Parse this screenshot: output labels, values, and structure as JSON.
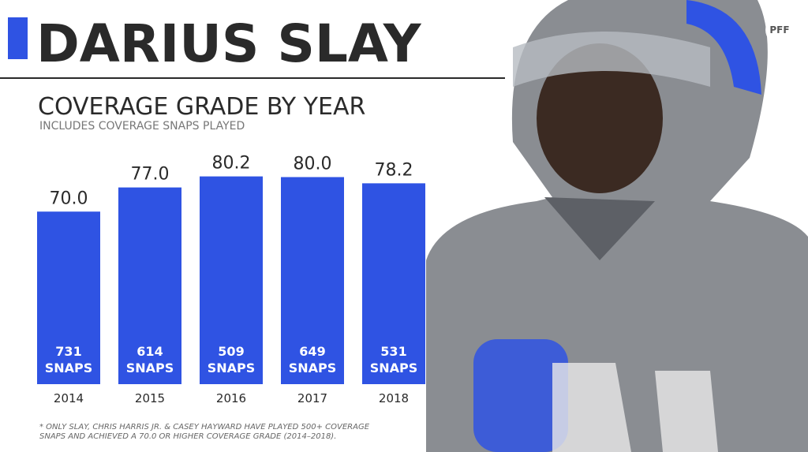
{
  "chart_data": {
    "type": "bar",
    "title": "DARIUS SLAY",
    "subtitle": "COVERAGE GRADE BY YEAR",
    "note": "INCLUDES COVERAGE SNAPS PLAYED",
    "categories": [
      "2014",
      "2015",
      "2016",
      "2017",
      "2018"
    ],
    "values": [
      70,
      77,
      80.2,
      80,
      78.2
    ],
    "value_labels": [
      "70.0",
      "77.0",
      "80.2",
      "80.0",
      "78.2"
    ],
    "snaps": [
      731,
      614,
      509,
      649,
      531
    ],
    "snaps_unit": "SNAPS",
    "color": "#2f53e3",
    "ylim": [
      20,
      100
    ],
    "footnote": [
      "* ONLY SLAY, CHRIS HARRIS JR. & CASEY HAYWARD HAVE PLAYED 500+ COVERAGE",
      "SNAPS AND ACHIEVED A 70.0 OR HIGHER COVERAGE GRADE (2014–2018)."
    ],
    "logo": "PFF"
  }
}
